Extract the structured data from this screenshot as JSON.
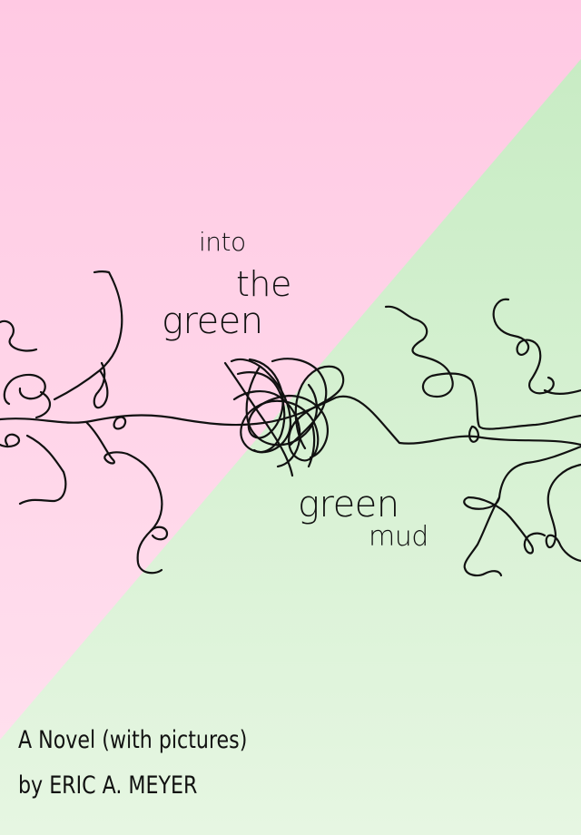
{
  "cover": {
    "title_words": [
      "into",
      "the",
      "green",
      "green",
      "mud"
    ],
    "subtitle": "A Novel (with pictures)",
    "author_line": "by ERIC A. MEYER"
  },
  "colors": {
    "pink_top": "#ffc9e3",
    "pink_bottom": "#ffe2ef",
    "green_top": "#c8ecc4",
    "green_bottom": "#e6f6e2",
    "ink": "#111111"
  },
  "icons": [
    "tangled-line-illustration"
  ]
}
